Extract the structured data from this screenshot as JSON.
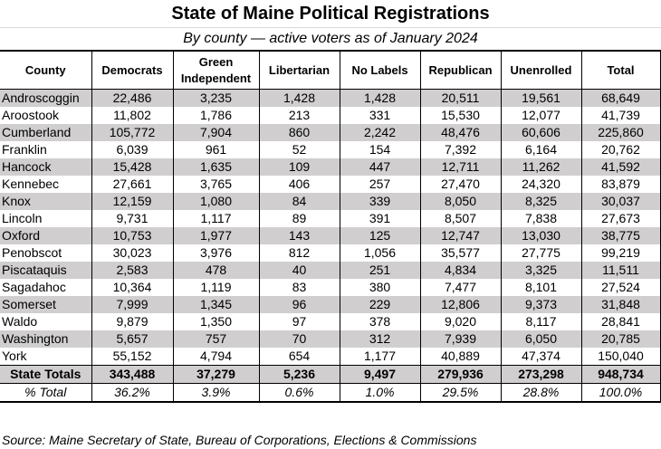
{
  "title": "State of Maine Political Registrations",
  "subtitle": "By county — active voters as of January 2024",
  "table": {
    "headers": [
      "County",
      "Democrats",
      "Green Independent",
      "Libertarian",
      "No Labels",
      "Republican",
      "Unenrolled",
      "Total"
    ],
    "header_lines": {
      "county": "County",
      "democrats": "Democrats",
      "green_line1": "Green",
      "green_line2": "Independent",
      "libertarian": "Libertarian",
      "no_labels": "No Labels",
      "republican": "Republican",
      "unenrolled": "Unenrolled",
      "total": "Total"
    },
    "rows": [
      {
        "county": "Androscoggin",
        "democrats": "22,486",
        "green": "3,235",
        "libertarian": "1,428",
        "no_labels": "1,428",
        "republican": "20,511",
        "unenrolled": "19,561",
        "total": "68,649"
      },
      {
        "county": "Aroostook",
        "democrats": "11,802",
        "green": "1,786",
        "libertarian": "213",
        "no_labels": "331",
        "republican": "15,530",
        "unenrolled": "12,077",
        "total": "41,739"
      },
      {
        "county": "Cumberland",
        "democrats": "105,772",
        "green": "7,904",
        "libertarian": "860",
        "no_labels": "2,242",
        "republican": "48,476",
        "unenrolled": "60,606",
        "total": "225,860"
      },
      {
        "county": "Franklin",
        "democrats": "6,039",
        "green": "961",
        "libertarian": "52",
        "no_labels": "154",
        "republican": "7,392",
        "unenrolled": "6,164",
        "total": "20,762"
      },
      {
        "county": "Hancock",
        "democrats": "15,428",
        "green": "1,635",
        "libertarian": "109",
        "no_labels": "447",
        "republican": "12,711",
        "unenrolled": "11,262",
        "total": "41,592"
      },
      {
        "county": "Kennebec",
        "democrats": "27,661",
        "green": "3,765",
        "libertarian": "406",
        "no_labels": "257",
        "republican": "27,470",
        "unenrolled": "24,320",
        "total": "83,879"
      },
      {
        "county": "Knox",
        "democrats": "12,159",
        "green": "1,080",
        "libertarian": "84",
        "no_labels": "339",
        "republican": "8,050",
        "unenrolled": "8,325",
        "total": "30,037"
      },
      {
        "county": "Lincoln",
        "democrats": "9,731",
        "green": "1,117",
        "libertarian": "89",
        "no_labels": "391",
        "republican": "8,507",
        "unenrolled": "7,838",
        "total": "27,673"
      },
      {
        "county": "Oxford",
        "democrats": "10,753",
        "green": "1,977",
        "libertarian": "143",
        "no_labels": "125",
        "republican": "12,747",
        "unenrolled": "13,030",
        "total": "38,775"
      },
      {
        "county": "Penobscot",
        "democrats": "30,023",
        "green": "3,976",
        "libertarian": "812",
        "no_labels": "1,056",
        "republican": "35,577",
        "unenrolled": "27,775",
        "total": "99,219"
      },
      {
        "county": "Piscataquis",
        "democrats": "2,583",
        "green": "478",
        "libertarian": "40",
        "no_labels": "251",
        "republican": "4,834",
        "unenrolled": "3,325",
        "total": "11,511"
      },
      {
        "county": "Sagadahoc",
        "democrats": "10,364",
        "green": "1,119",
        "libertarian": "83",
        "no_labels": "380",
        "republican": "7,477",
        "unenrolled": "8,101",
        "total": "27,524"
      },
      {
        "county": "Somerset",
        "democrats": "7,999",
        "green": "1,345",
        "libertarian": "96",
        "no_labels": "229",
        "republican": "12,806",
        "unenrolled": "9,373",
        "total": "31,848"
      },
      {
        "county": "Waldo",
        "democrats": "9,879",
        "green": "1,350",
        "libertarian": "97",
        "no_labels": "378",
        "republican": "9,020",
        "unenrolled": "8,117",
        "total": "28,841"
      },
      {
        "county": "Washington",
        "democrats": "5,657",
        "green": "757",
        "libertarian": "70",
        "no_labels": "312",
        "republican": "7,939",
        "unenrolled": "6,050",
        "total": "20,785"
      },
      {
        "county": "York",
        "democrats": "55,152",
        "green": "4,794",
        "libertarian": "654",
        "no_labels": "1,177",
        "republican": "40,889",
        "unenrolled": "47,374",
        "total": "150,040"
      }
    ],
    "totals": {
      "county": "State Totals",
      "democrats": "343,488",
      "green": "37,279",
      "libertarian": "5,236",
      "no_labels": "9,497",
      "republican": "279,936",
      "unenrolled": "273,298",
      "total": "948,734"
    },
    "percent": {
      "county": "% Total",
      "democrats": "36.2%",
      "green": "3.9%",
      "libertarian": "0.6%",
      "no_labels": "1.0%",
      "republican": "29.5%",
      "unenrolled": "28.8%",
      "total": "100.0%"
    }
  },
  "source": "Source: Maine Secretary of State, Bureau of Corporations, Elections & Commissions",
  "colors": {
    "stripe": "#d0cece",
    "border": "#000000",
    "title_rule": "#d9d9d9"
  }
}
